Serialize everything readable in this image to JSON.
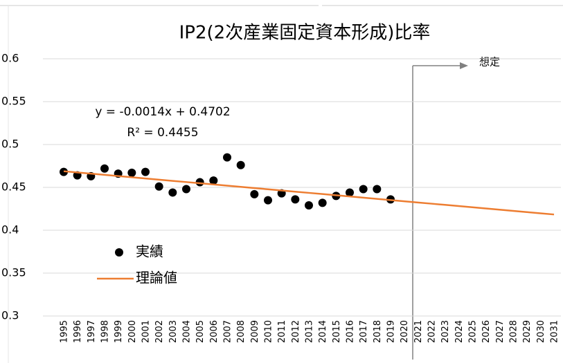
{
  "chart_data": {
    "type": "scatter",
    "title": "IP2(2次産業固定資本形成)比率",
    "annotations": [
      "y = -0.0014x + 0.4702",
      "R² = 0.4455",
      "想定"
    ],
    "categories": [
      "1995",
      "1996",
      "1997",
      "1998",
      "1999",
      "2000",
      "2001",
      "2002",
      "2003",
      "2004",
      "2005",
      "2006",
      "2007",
      "2008",
      "2009",
      "2010",
      "2011",
      "2012",
      "2013",
      "2014",
      "2015",
      "2016",
      "2017",
      "2018",
      "2019",
      "2020",
      "2021",
      "2022",
      "2023",
      "2024",
      "2025",
      "2026",
      "2027",
      "2028",
      "2029",
      "2030",
      "2031"
    ],
    "series": [
      {
        "name": "実績",
        "color": "#000000",
        "kind": "points",
        "values": [
          0.468,
          0.464,
          0.463,
          0.472,
          0.466,
          0.467,
          0.468,
          0.451,
          0.444,
          0.448,
          0.456,
          0.458,
          0.485,
          0.476,
          0.442,
          0.435,
          0.443,
          0.436,
          0.429,
          0.432,
          0.44,
          0.444,
          0.448,
          0.448,
          0.436,
          null,
          null,
          null,
          null,
          null,
          null,
          null,
          null,
          null,
          null,
          null,
          null
        ]
      },
      {
        "name": "理論値",
        "color": "#ed7d31",
        "kind": "line",
        "values": [
          0.4688,
          0.4674,
          0.466,
          0.4646,
          0.4632,
          0.4618,
          0.4604,
          0.459,
          0.4576,
          0.4562,
          0.4548,
          0.4534,
          0.452,
          0.4506,
          0.4492,
          0.4478,
          0.4464,
          0.445,
          0.4436,
          0.4422,
          0.4408,
          0.4394,
          0.438,
          0.4366,
          0.4352,
          0.4338,
          0.4324,
          0.431,
          0.4296,
          0.4282,
          0.4268,
          0.4254,
          0.424,
          0.4226,
          0.4212,
          0.4198,
          0.4184
        ]
      }
    ],
    "ylim": [
      0.3,
      0.6
    ],
    "yticks": [
      0.3,
      0.35,
      0.4,
      0.45,
      0.5,
      0.55,
      0.6
    ],
    "grid": true
  }
}
